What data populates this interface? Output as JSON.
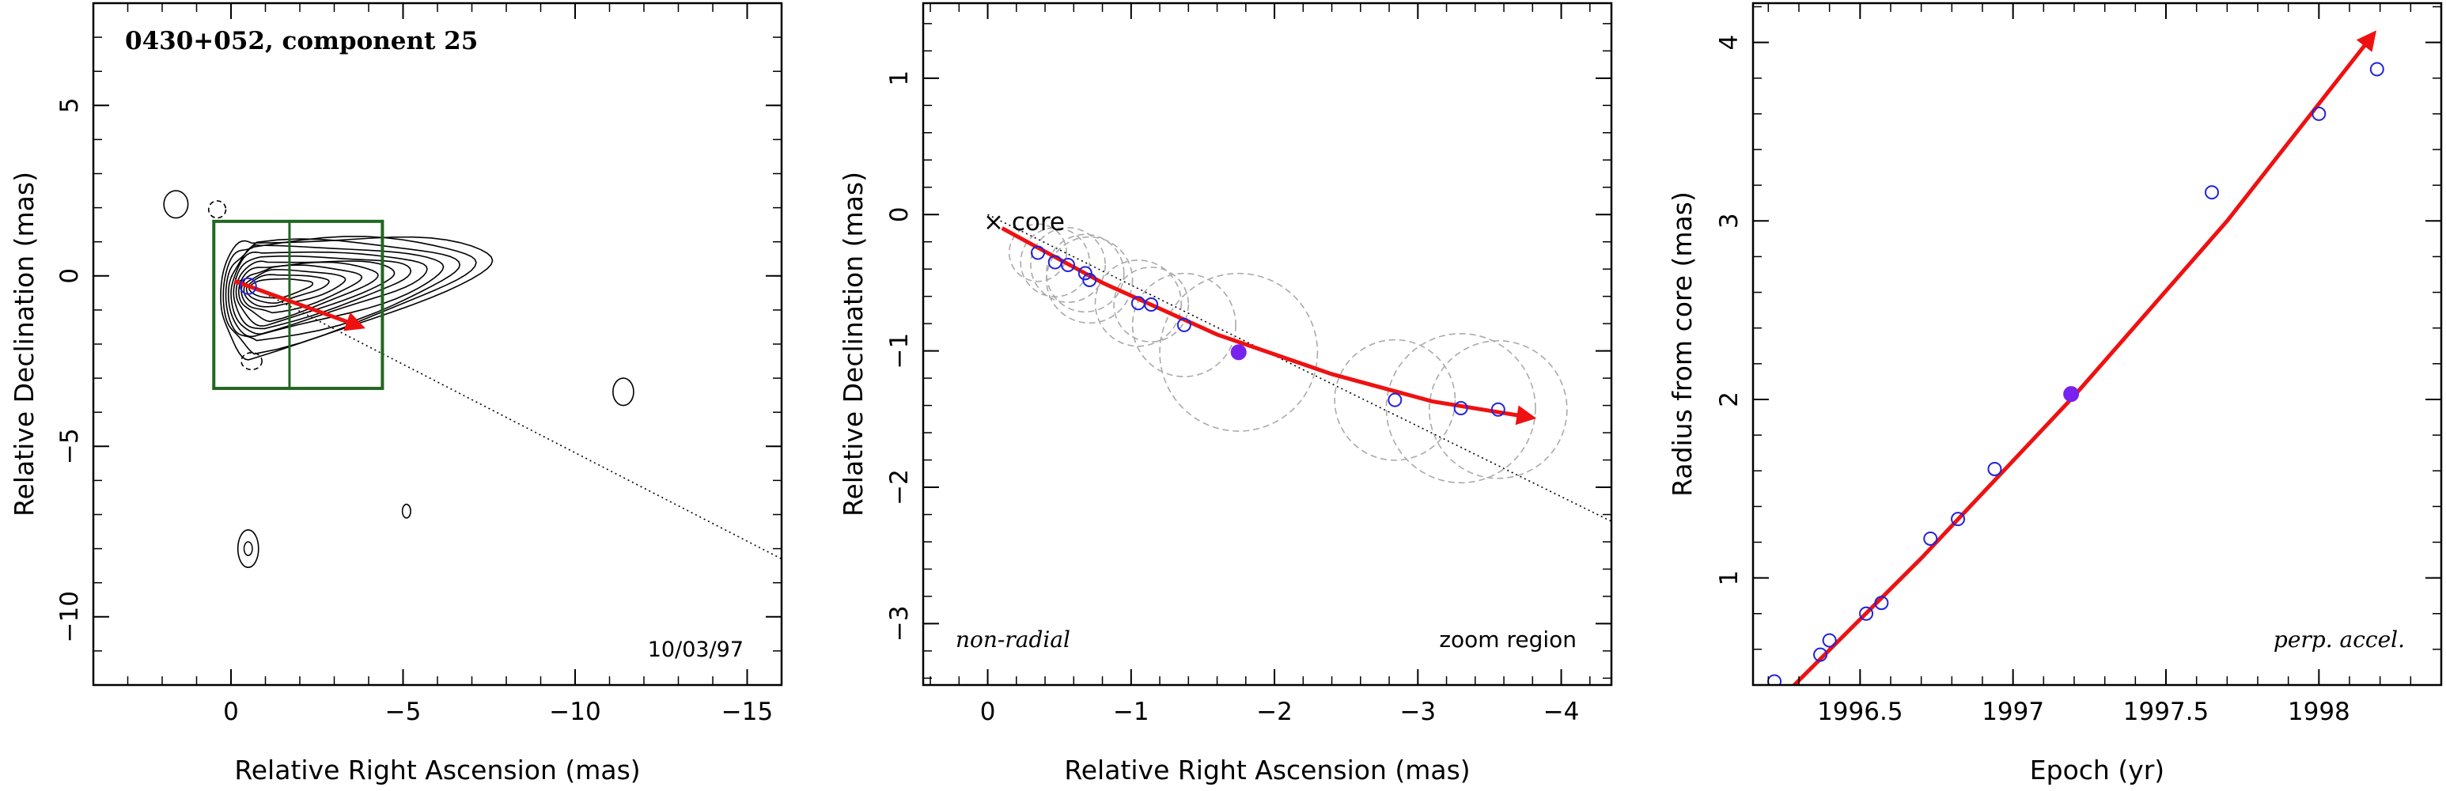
{
  "colors": {
    "arrow": "#ee1111",
    "points": "#2222dd",
    "filled_point": "#7722ee",
    "box": "#226622",
    "circles": "#aaaaaa",
    "axes": "#000000"
  },
  "chart_data": [
    {
      "type": "contour",
      "title": "0430+052, component 25",
      "date_label": "10/03/97",
      "xlabel": "Relative Right Ascension (mas)",
      "ylabel": "Relative Declination (mas)",
      "xlim": [
        4,
        -16
      ],
      "ylim": [
        -12,
        8
      ],
      "xticks": [
        0,
        -5,
        -10,
        -15
      ],
      "yticks": [
        5,
        0,
        -5,
        -10
      ],
      "xtick_labels": [
        "0",
        "−5",
        "−10",
        "−15"
      ],
      "ytick_labels": [
        "5",
        "0",
        "−5",
        "−10"
      ],
      "grid": false,
      "zoom_box": {
        "x": [
          0.5,
          -4.4
        ],
        "y": [
          1.6,
          -3.3
        ],
        "x_split": -1.7
      },
      "jet_axis_line": {
        "from": [
          0,
          0
        ],
        "to": [
          -16,
          -8.3
        ]
      },
      "trajectory": {
        "from": [
          -0.1,
          -0.15
        ],
        "to": [
          -3.8,
          -1.5
        ]
      },
      "marker": [
        -0.5,
        -0.3
      ],
      "contour_levels": 12
    },
    {
      "type": "scatter",
      "xlabel": "Relative Right Ascension (mas)",
      "ylabel": "Relative Declination (mas)",
      "xlim": [
        0.45,
        -4.35
      ],
      "ylim": [
        -3.45,
        1.55
      ],
      "xticks": [
        0,
        -1,
        -2,
        -3,
        -4
      ],
      "yticks": [
        1,
        0,
        -1,
        -2,
        -3
      ],
      "xtick_labels": [
        "0",
        "−1",
        "−2",
        "−3",
        "−4"
      ],
      "ytick_labels": [
        "1",
        "0",
        "−1",
        "−2",
        "−3"
      ],
      "grid": false,
      "annotations": {
        "core": "× core",
        "left": "non-radial",
        "right": "zoom region"
      },
      "points": [
        {
          "x": -0.35,
          "y": -0.28,
          "r": 0.2
        },
        {
          "x": -0.47,
          "y": -0.35,
          "r": 0.24
        },
        {
          "x": -0.56,
          "y": -0.37,
          "r": 0.26
        },
        {
          "x": -0.68,
          "y": -0.43,
          "r": 0.27
        },
        {
          "x": -0.71,
          "y": -0.48,
          "r": 0.3
        },
        {
          "x": -1.05,
          "y": -0.65,
          "r": 0.3
        },
        {
          "x": -1.14,
          "y": -0.66,
          "r": 0.26
        },
        {
          "x": -1.37,
          "y": -0.81,
          "r": 0.36
        },
        {
          "x": -1.75,
          "y": -1.01,
          "r": 0.55,
          "filled": true
        },
        {
          "x": -2.84,
          "y": -1.36,
          "r": 0.42
        },
        {
          "x": -3.3,
          "y": -1.42,
          "r": 0.52
        },
        {
          "x": -3.56,
          "y": -1.43,
          "r": 0.48
        }
      ],
      "trajectory": [
        {
          "x": -0.1,
          "y": -0.1
        },
        {
          "x": -0.8,
          "y": -0.5
        },
        {
          "x": -1.6,
          "y": -0.88
        },
        {
          "x": -2.4,
          "y": -1.17
        },
        {
          "x": -3.1,
          "y": -1.37
        },
        {
          "x": -3.8,
          "y": -1.49
        }
      ],
      "axis_line": {
        "from": [
          0,
          0
        ],
        "to": [
          -4.35,
          -2.25
        ]
      }
    },
    {
      "type": "scatter",
      "xlabel": "Epoch (yr)",
      "ylabel": "Radius from core (mas)",
      "xlim": [
        1996.15,
        1998.4
      ],
      "ylim": [
        0.4,
        4.22
      ],
      "xticks": [
        1996.5,
        1997,
        1997.5,
        1998
      ],
      "yticks": [
        1,
        2,
        3,
        4
      ],
      "xtick_labels": [
        "1996.5",
        "1997",
        "1997.5",
        "1998"
      ],
      "ytick_labels": [
        "1",
        "2",
        "3",
        "4"
      ],
      "grid": false,
      "annotation": "perp. accel.",
      "x": [
        1996.22,
        1996.37,
        1996.4,
        1996.52,
        1996.57,
        1996.73,
        1996.82,
        1996.94,
        1997.19,
        1997.65,
        1998.0,
        1998.19
      ],
      "y": [
        0.42,
        0.57,
        0.65,
        0.8,
        0.86,
        1.22,
        1.33,
        1.61,
        2.03,
        3.16,
        3.6,
        3.85
      ],
      "filled_index": 8,
      "fit_line": [
        {
          "x": 1996.25,
          "y": 0.34
        },
        {
          "x": 1996.7,
          "y": 1.11
        },
        {
          "x": 1997.2,
          "y": 2.02
        },
        {
          "x": 1997.7,
          "y": 3.0
        },
        {
          "x": 1998.18,
          "y": 4.05
        }
      ]
    }
  ]
}
